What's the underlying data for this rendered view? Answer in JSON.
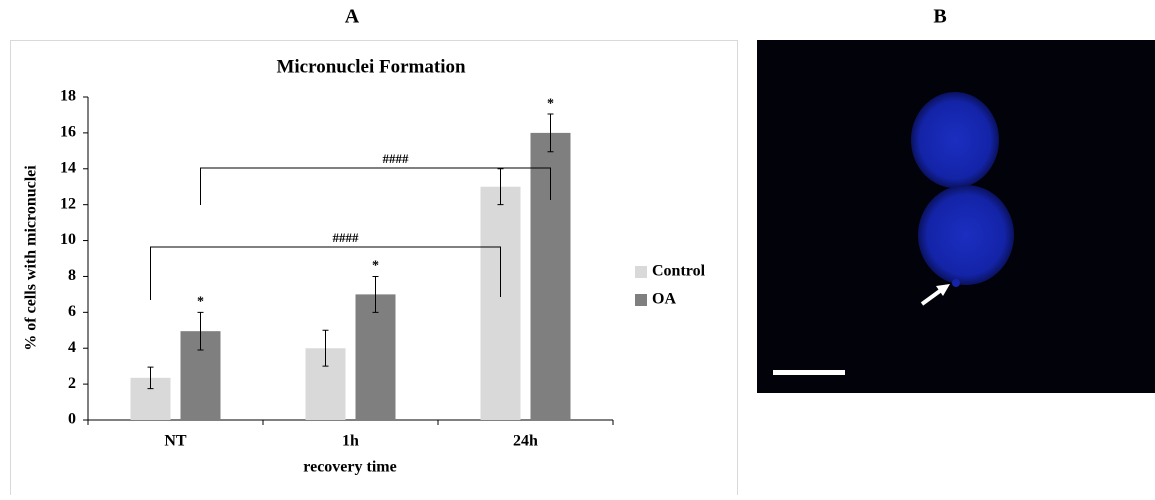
{
  "panel_labels": [
    "A",
    "B"
  ],
  "chart_data": {
    "type": "bar",
    "title": "Micronuclei Formation",
    "x_label": "recovery time",
    "y_label": "% of cells with micronuclei",
    "categories": [
      "NT",
      "1h",
      "24h"
    ],
    "series": [
      {
        "name": "Control",
        "color": "#d9d9d9",
        "values": [
          2.35,
          4.0,
          13.0
        ],
        "errors": [
          0.6,
          1.0,
          1.0
        ]
      },
      {
        "name": "OA",
        "color": "#7f7f7f",
        "values": [
          4.95,
          7.0,
          16.0
        ],
        "errors": [
          1.05,
          1.0,
          1.05
        ],
        "significance_labels": [
          "*",
          "*",
          "*"
        ]
      }
    ],
    "annotations": [
      "####",
      "####"
    ],
    "ylim": [
      0,
      18
    ],
    "yticks": [
      0,
      2,
      4,
      6,
      8,
      10,
      12,
      14,
      16,
      18
    ],
    "legend": "right"
  }
}
